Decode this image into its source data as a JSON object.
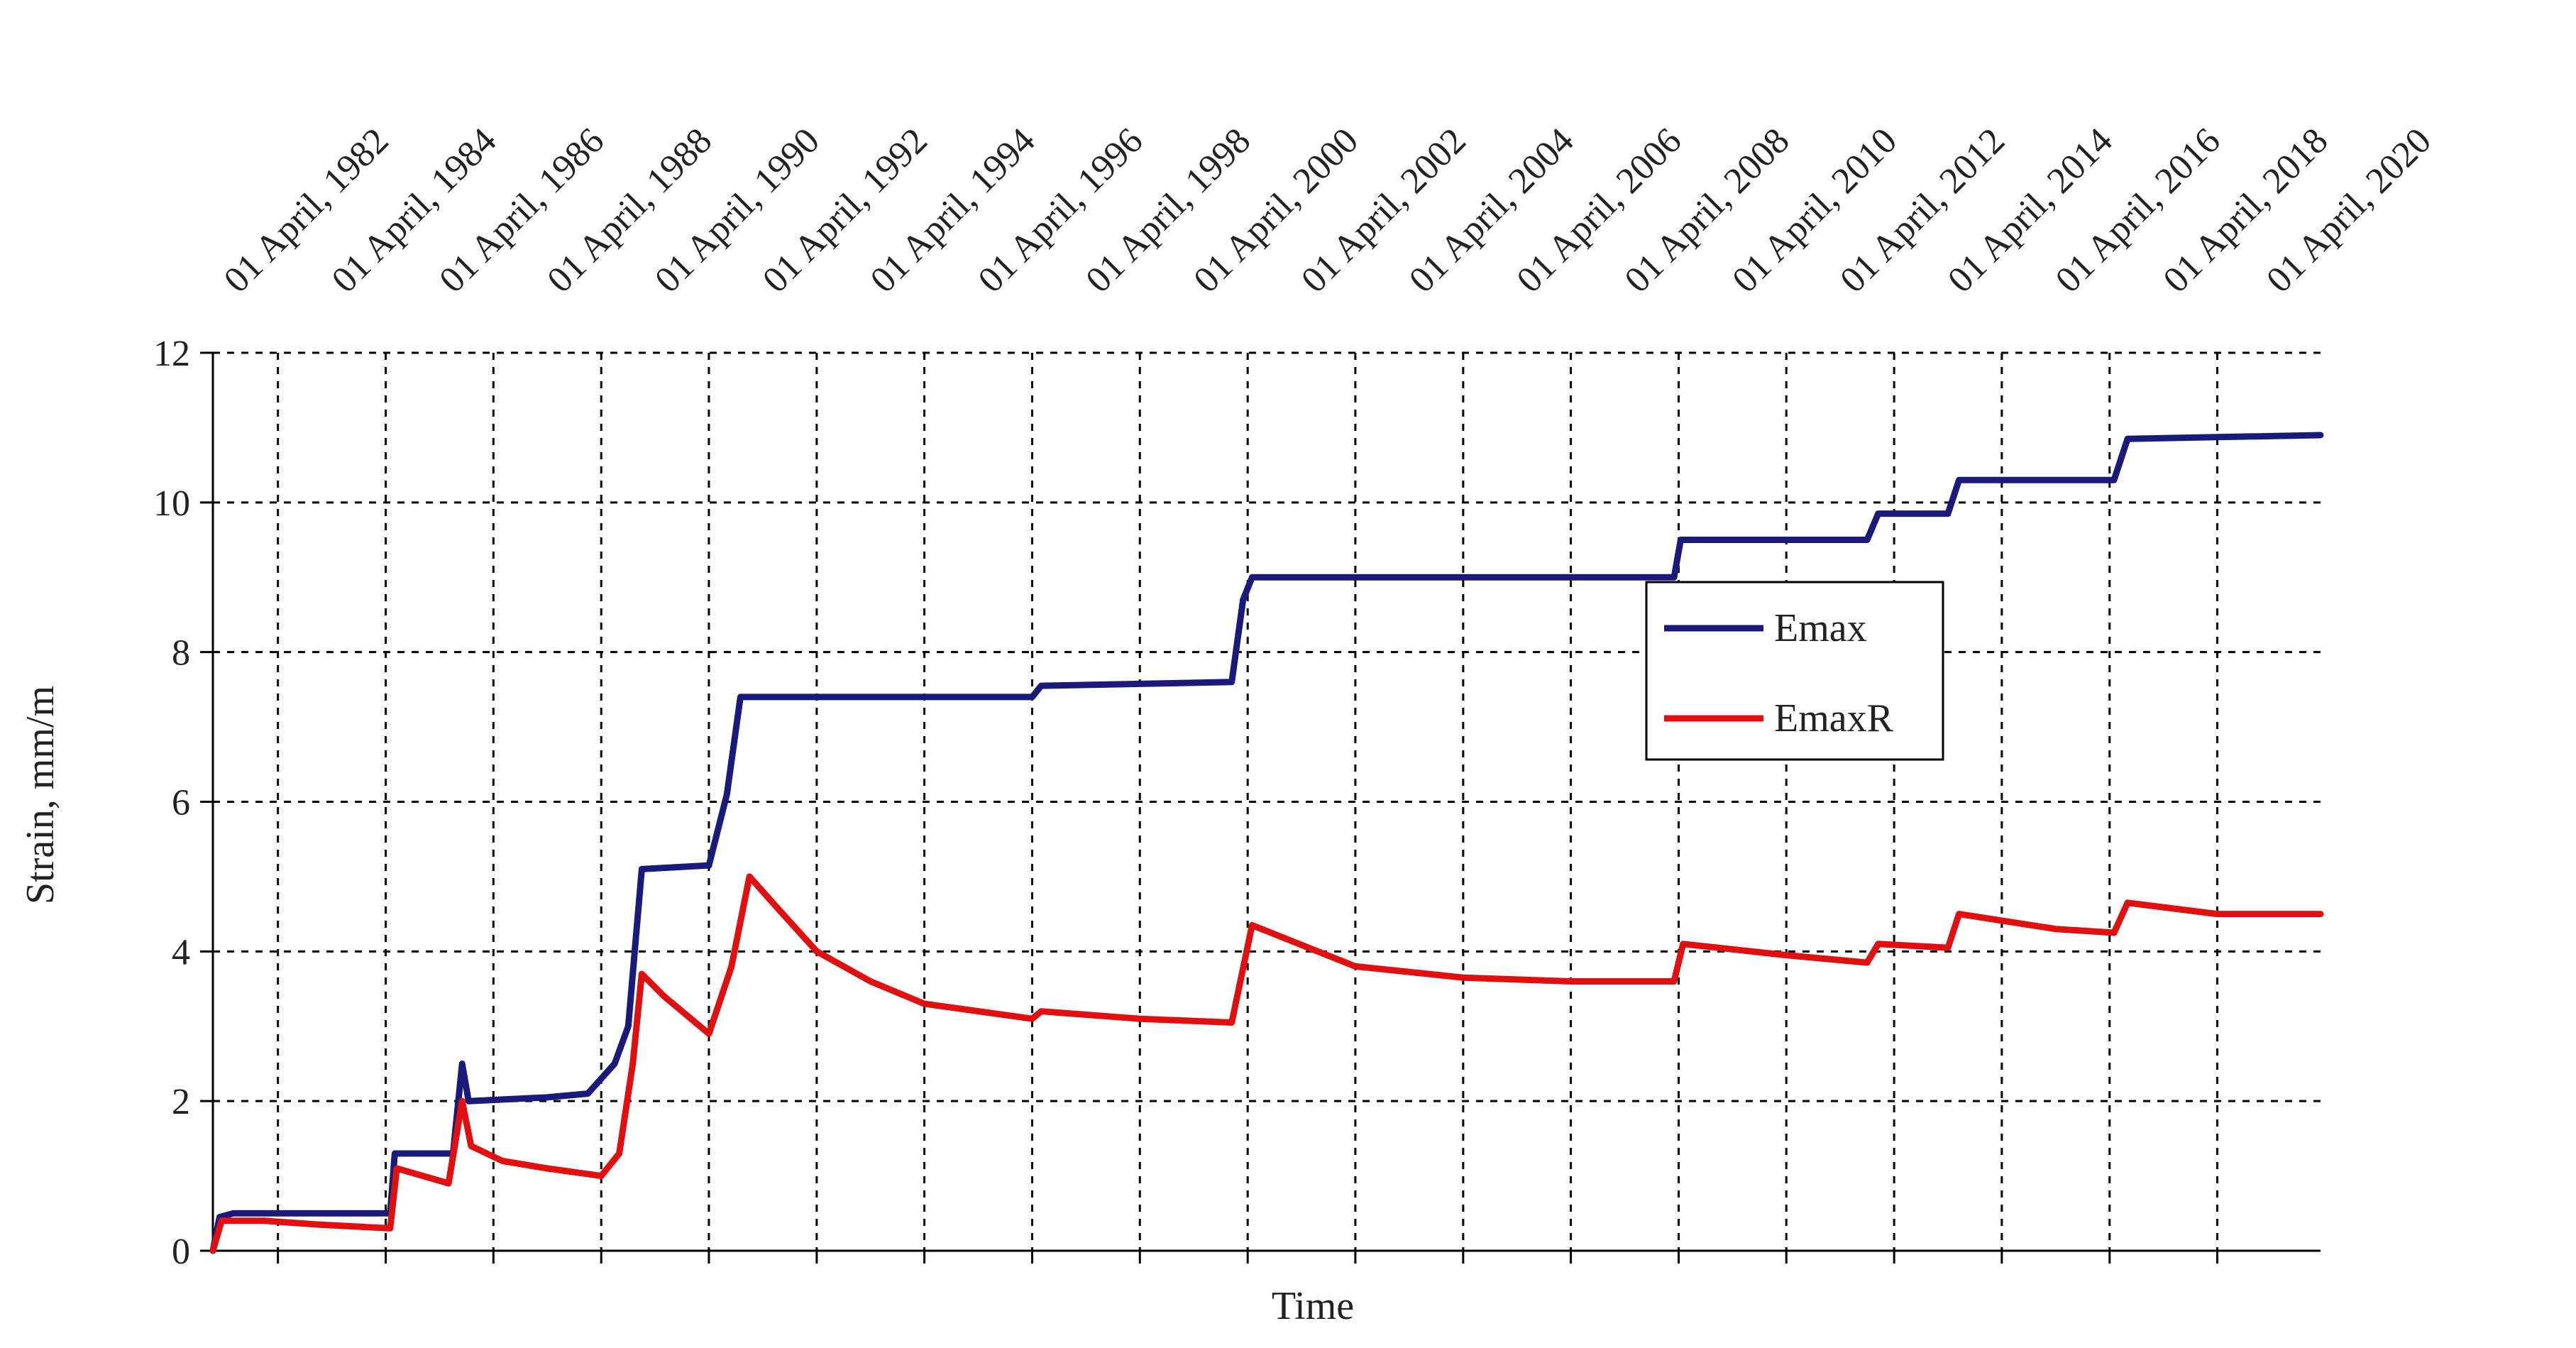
{
  "chart_data": {
    "type": "line",
    "xlabel": "Time",
    "ylabel": "Strain, mm/m",
    "ylim": [
      0,
      12
    ],
    "yticks": [
      0,
      2,
      4,
      6,
      8,
      10,
      12
    ],
    "xlim": [
      "1981-01-15",
      "2020-03-01"
    ],
    "x_tick_labels": [
      "01 April, 1982",
      "01 April, 1984",
      "01 April, 1986",
      "01 April, 1988",
      "01 April, 1990",
      "01 April, 1992",
      "01 April, 1994",
      "01 April, 1996",
      "01 April, 1998",
      "01 April, 2000",
      "01 April, 2002",
      "01 April, 2004",
      "01 April, 2006",
      "01 April, 2008",
      "01 April, 2010",
      "01 April, 2012",
      "01 April, 2014",
      "01 April, 2016",
      "01 April, 2018",
      "01 April, 2020"
    ],
    "x_tick_dates": [
      "1982-04-01",
      "1984-04-01",
      "1986-04-01",
      "1988-04-01",
      "1990-04-01",
      "1992-04-01",
      "1994-04-01",
      "1996-04-01",
      "1998-04-01",
      "2000-04-01",
      "2002-04-01",
      "2004-04-01",
      "2006-04-01",
      "2008-04-01",
      "2010-04-01",
      "2012-04-01",
      "2014-04-01",
      "2016-04-01",
      "2018-04-01",
      "2020-04-01"
    ],
    "grid": true,
    "legend_position": "center-right",
    "series": [
      {
        "name": "Emax",
        "color": "#1a1a7a",
        "points": [
          [
            "1981-01-15",
            0.0
          ],
          [
            "1981-03-01",
            0.45
          ],
          [
            "1981-06-01",
            0.5
          ],
          [
            "1984-05-01",
            0.5
          ],
          [
            "1984-06-01",
            1.3
          ],
          [
            "1985-07-01",
            1.3
          ],
          [
            "1985-09-01",
            2.5
          ],
          [
            "1985-10-15",
            2.0
          ],
          [
            "1987-04-01",
            2.05
          ],
          [
            "1988-01-01",
            2.1
          ],
          [
            "1988-07-01",
            2.5
          ],
          [
            "1988-10-01",
            3.0
          ],
          [
            "1989-01-01",
            5.1
          ],
          [
            "1990-04-01",
            5.15
          ],
          [
            "1990-08-01",
            6.1
          ],
          [
            "1990-11-01",
            7.4
          ],
          [
            "1996-04-01",
            7.4
          ],
          [
            "1996-06-01",
            7.55
          ],
          [
            "1999-12-15",
            7.6
          ],
          [
            "2000-03-01",
            8.7
          ],
          [
            "2000-05-01",
            9.0
          ],
          [
            "2008-03-01",
            9.0
          ],
          [
            "2008-04-15",
            9.5
          ],
          [
            "2011-10-01",
            9.5
          ],
          [
            "2011-12-15",
            9.85
          ],
          [
            "2013-04-01",
            9.85
          ],
          [
            "2013-06-15",
            10.3
          ],
          [
            "2016-05-01",
            10.3
          ],
          [
            "2016-08-01",
            10.85
          ],
          [
            "2020-03-01",
            10.9
          ]
        ]
      },
      {
        "name": "EmaxR",
        "color": "#e01010",
        "points": [
          [
            "1981-01-15",
            0.0
          ],
          [
            "1981-03-15",
            0.4
          ],
          [
            "1982-01-01",
            0.4
          ],
          [
            "1983-01-01",
            0.35
          ],
          [
            "1984-05-01",
            0.3
          ],
          [
            "1984-06-15",
            1.1
          ],
          [
            "1985-06-01",
            0.9
          ],
          [
            "1985-09-01",
            2.0
          ],
          [
            "1985-11-01",
            1.4
          ],
          [
            "1986-06-01",
            1.2
          ],
          [
            "1987-04-01",
            1.1
          ],
          [
            "1988-04-01",
            1.0
          ],
          [
            "1988-08-01",
            1.3
          ],
          [
            "1988-11-01",
            2.5
          ],
          [
            "1989-01-01",
            3.7
          ],
          [
            "1989-06-01",
            3.4
          ],
          [
            "1990-04-01",
            2.9
          ],
          [
            "1990-09-01",
            3.8
          ],
          [
            "1991-01-01",
            5.0
          ],
          [
            "1991-07-01",
            4.6
          ],
          [
            "1992-04-01",
            4.0
          ],
          [
            "1993-04-01",
            3.6
          ],
          [
            "1994-04-01",
            3.3
          ],
          [
            "1996-04-01",
            3.1
          ],
          [
            "1996-06-01",
            3.2
          ],
          [
            "1998-04-01",
            3.1
          ],
          [
            "1999-12-15",
            3.05
          ],
          [
            "2000-05-01",
            4.35
          ],
          [
            "2002-04-01",
            3.8
          ],
          [
            "2004-04-01",
            3.65
          ],
          [
            "2006-04-01",
            3.6
          ],
          [
            "2008-03-01",
            3.6
          ],
          [
            "2008-05-01",
            4.1
          ],
          [
            "2010-04-01",
            3.95
          ],
          [
            "2011-10-01",
            3.85
          ],
          [
            "2011-12-15",
            4.1
          ],
          [
            "2013-04-01",
            4.05
          ],
          [
            "2013-06-15",
            4.5
          ],
          [
            "2015-04-01",
            4.3
          ],
          [
            "2016-05-01",
            4.25
          ],
          [
            "2016-08-01",
            4.65
          ],
          [
            "2018-04-01",
            4.5
          ],
          [
            "2020-03-01",
            4.5
          ]
        ]
      }
    ]
  }
}
